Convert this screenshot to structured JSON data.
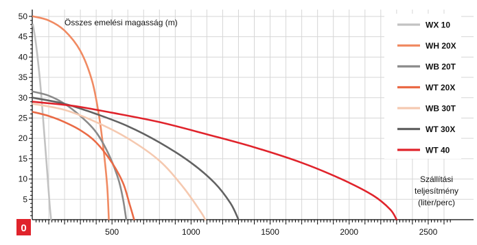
{
  "chart_data": {
    "type": "line",
    "ylabel": "Összes emelési magasság (m)",
    "xlabel_lines": [
      "Szállítási",
      "teljesítmény",
      "(liter/perc)"
    ],
    "origin_label": "0",
    "xlim": [
      0,
      2700
    ],
    "ylim": [
      0,
      51
    ],
    "x_ticks": [
      500,
      1000,
      1500,
      2000,
      2500
    ],
    "y_ticks": [
      5,
      10,
      15,
      20,
      25,
      30,
      35,
      40,
      45,
      50
    ],
    "grid": true,
    "legend_position": "top-right",
    "series": [
      {
        "name": "WX 10",
        "color": "#c2c2c2",
        "points": [
          [
            0,
            48
          ],
          [
            20,
            43
          ],
          [
            45,
            34
          ],
          [
            70,
            22
          ],
          [
            90,
            12
          ],
          [
            105,
            4
          ],
          [
            115,
            0
          ]
        ]
      },
      {
        "name": "WH 20X",
        "color": "#f08a62",
        "points": [
          [
            0,
            50
          ],
          [
            100,
            49
          ],
          [
            200,
            46.5
          ],
          [
            300,
            41.5
          ],
          [
            375,
            34
          ],
          [
            420,
            25
          ],
          [
            450,
            16
          ],
          [
            470,
            8
          ],
          [
            480,
            0
          ]
        ]
      },
      {
        "name": "WB 20T",
        "color": "#8a8a8a",
        "points": [
          [
            0,
            31.5
          ],
          [
            100,
            30.5
          ],
          [
            200,
            28.5
          ],
          [
            300,
            25.5
          ],
          [
            400,
            21.5
          ],
          [
            480,
            16
          ],
          [
            540,
            10
          ],
          [
            570,
            5
          ],
          [
            590,
            0
          ]
        ]
      },
      {
        "name": "WT 20X",
        "color": "#ea6a45",
        "points": [
          [
            0,
            26.5
          ],
          [
            100,
            25.5
          ],
          [
            200,
            24
          ],
          [
            300,
            22
          ],
          [
            400,
            19
          ],
          [
            500,
            14
          ],
          [
            570,
            9
          ],
          [
            610,
            4
          ],
          [
            640,
            0
          ]
        ]
      },
      {
        "name": "WB 30T",
        "color": "#f5c9b0",
        "points": [
          [
            0,
            28.5
          ],
          [
            200,
            27
          ],
          [
            400,
            24
          ],
          [
            600,
            20
          ],
          [
            800,
            14.5
          ],
          [
            950,
            8
          ],
          [
            1060,
            2
          ],
          [
            1090,
            0
          ]
        ]
      },
      {
        "name": "WT 30X",
        "color": "#626262",
        "points": [
          [
            0,
            30
          ],
          [
            200,
            28.5
          ],
          [
            400,
            26
          ],
          [
            600,
            23
          ],
          [
            800,
            19
          ],
          [
            1000,
            14
          ],
          [
            1150,
            9
          ],
          [
            1250,
            4
          ],
          [
            1300,
            0
          ]
        ]
      },
      {
        "name": "WT 40",
        "color": "#e0232b",
        "points": [
          [
            0,
            29
          ],
          [
            250,
            28
          ],
          [
            500,
            26.3
          ],
          [
            800,
            24
          ],
          [
            1100,
            21
          ],
          [
            1400,
            17.8
          ],
          [
            1700,
            14
          ],
          [
            1950,
            10
          ],
          [
            2150,
            6
          ],
          [
            2260,
            2.5
          ],
          [
            2300,
            0
          ]
        ]
      }
    ]
  }
}
